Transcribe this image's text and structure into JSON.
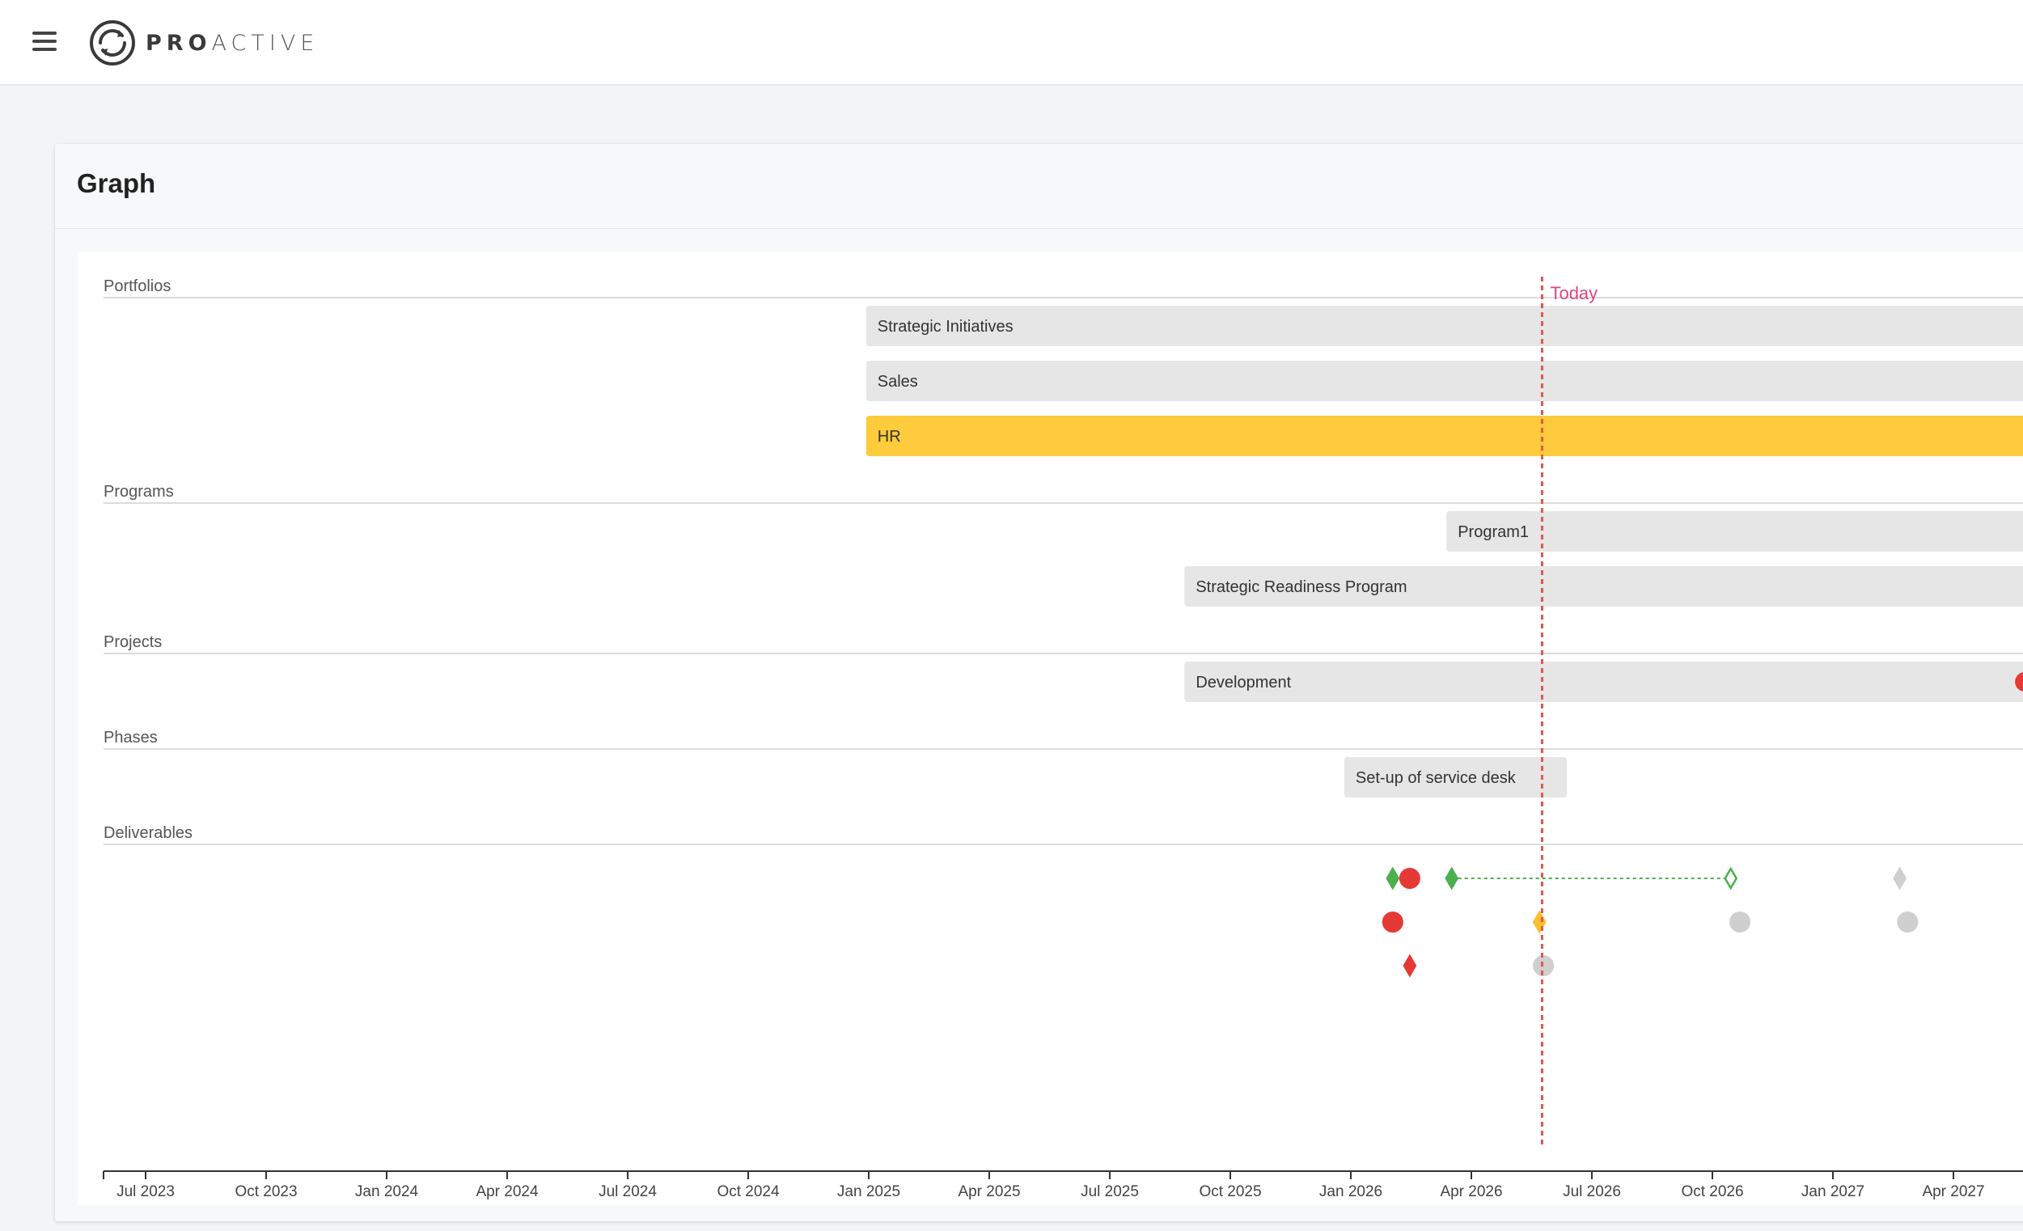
{
  "header": {
    "menu_icon": "hamburger-menu-icon",
    "logo_icon": "proactive-logo-icon",
    "logo_text_bold": "PRO",
    "logo_text_light": "ACTIVE"
  },
  "card": {
    "title": "Graph"
  },
  "chart_data": {
    "type": "timeline",
    "x_axis": {
      "ticks": [
        "Jul 2023",
        "Oct 2023",
        "Jan 2024",
        "Apr 2024",
        "Jul 2024",
        "Oct 2024",
        "Jan 2025",
        "Apr 2025",
        "Jul 2025",
        "Oct 2025",
        "Jan 2026",
        "Apr 2026",
        "Jul 2026",
        "Oct 2026",
        "Jan 2027",
        "Apr 2027"
      ]
    },
    "today": {
      "label": "Today",
      "date": "2026-06-01",
      "color": "#e2574c"
    },
    "sections": [
      {
        "key": "portfolios",
        "label": "Portfolios",
        "bars": [
          {
            "label": "Strategic Initiatives",
            "start": "2025-01-01",
            "end": "2028-06-01",
            "color": "#e6e6e6",
            "alert": false
          },
          {
            "label": "Sales",
            "start": "2025-01-01",
            "end": "2028-06-01",
            "color": "#e6e6e6",
            "alert": false
          },
          {
            "label": "HR",
            "start": "2025-01-01",
            "end": "2028-06-01",
            "color": "#fdcb3b",
            "alert": false
          }
        ]
      },
      {
        "key": "programs",
        "label": "Programs",
        "bars": [
          {
            "label": "Program1",
            "start": "2026-03-20",
            "end": "2027-07-05",
            "color": "#e6e6e6",
            "alert": false
          },
          {
            "label": "Strategic Readiness Program",
            "start": "2025-09-01",
            "end": "2027-06-28",
            "color": "#e6e6e6",
            "alert": true
          }
        ]
      },
      {
        "key": "projects",
        "label": "Projects",
        "bars": [
          {
            "label": "Development",
            "start": "2025-09-01",
            "end": "2027-06-18",
            "color": "#e6e6e6",
            "alert": true
          }
        ]
      },
      {
        "key": "phases",
        "label": "Phases",
        "bars": [
          {
            "label": "Set-up of service desk",
            "start": "2026-01-01",
            "end": "2026-06-20",
            "color": "#e6e6e6",
            "alert": false
          }
        ]
      },
      {
        "key": "deliverables",
        "label": "Deliverables",
        "bars": []
      }
    ],
    "deliverables": [
      {
        "row": 0,
        "date": "2026-02-07",
        "shape": "diamond",
        "color": "#4caf50",
        "filled": true
      },
      {
        "row": 0,
        "date": "2026-02-20",
        "shape": "circle",
        "color": "#e53935",
        "filled": true
      },
      {
        "row": 0,
        "date": "2026-03-24",
        "shape": "diamond",
        "color": "#4caf50",
        "filled": true
      },
      {
        "row": 0,
        "date": "2026-10-23",
        "shape": "diamond",
        "color": "#4caf50",
        "filled": false
      },
      {
        "row": 0,
        "date": "2027-03-01",
        "shape": "diamond",
        "color": "#cfcfcf",
        "filled": true
      },
      {
        "row": 1,
        "date": "2026-02-07",
        "shape": "circle",
        "color": "#e53935",
        "filled": true
      },
      {
        "row": 1,
        "date": "2026-05-30",
        "shape": "diamond",
        "color": "#fbc02d",
        "filled": true
      },
      {
        "row": 1,
        "date": "2026-10-30",
        "shape": "circle",
        "color": "#cfcfcf",
        "filled": true
      },
      {
        "row": 1,
        "date": "2027-03-07",
        "shape": "circle",
        "color": "#cfcfcf",
        "filled": true
      },
      {
        "row": 2,
        "date": "2026-02-20",
        "shape": "diamond",
        "color": "#e53935",
        "filled": true
      },
      {
        "row": 2,
        "date": "2026-06-02",
        "shape": "circle",
        "color": "#cfcfcf",
        "filled": true
      }
    ],
    "links": [
      {
        "row": 0,
        "from": "2026-03-24",
        "to": "2026-10-23",
        "color": "#4caf50",
        "style": "dotted"
      }
    ],
    "alert_icon": "exclamation-circle-icon"
  }
}
